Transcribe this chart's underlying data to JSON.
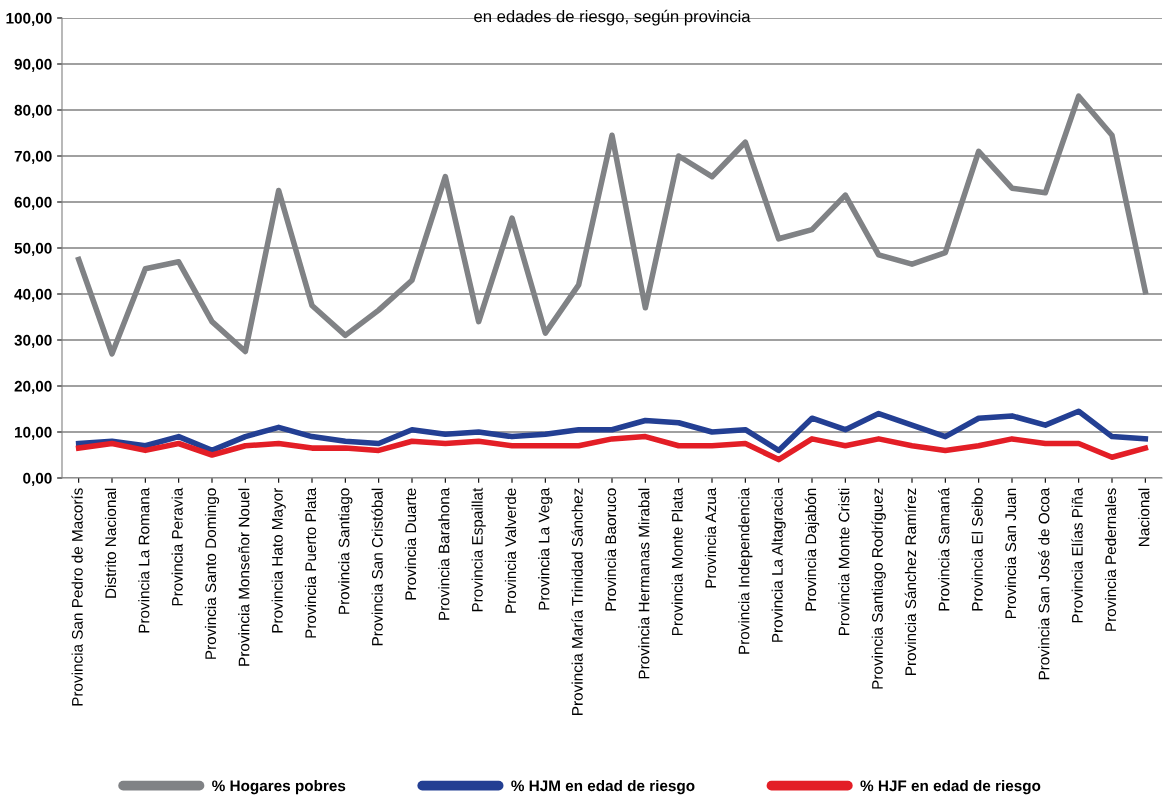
{
  "chart_data": {
    "type": "line",
    "title": "en edades de riesgo, según provincia",
    "categories": [
      "Provincia San Pedro de Macorís",
      "Distrito Nacional",
      "Provincia La Romana",
      "Provincia Peravia",
      "Provincia Santo Domingo",
      "Provincia Monseñor Nouel",
      "Provincia Hato Mayor",
      "Provincia Puerto Plata",
      "Provincia Santiago",
      "Provincia San Cristóbal",
      "Provincia Duarte",
      "Provincia Barahona",
      "Provincia Espaillat",
      "Provincia Valverde",
      "Provincia La Vega",
      "Provincia María Trinidad Sánchez",
      "Provincia Baoruco",
      "Provincia Hermanas Mirabal",
      "Provincia Monte Plata",
      "Provincia Azua",
      "Provincia Independencia",
      "Provincia La Altagracia",
      "Provincia Dajabón",
      "Provincia Monte Cristi",
      "Provincia Santiago Rodríguez",
      "Provincia Sánchez Ramírez",
      "Provincia Samaná",
      "Provincia El Seibo",
      "Provincia San Juan",
      "Provincia San José de Ocoa",
      "Provincia Elías Piña",
      "Provincia Pedernales",
      "Nacional"
    ],
    "series": [
      {
        "name": "% Hogares pobres",
        "color": "#808285",
        "values": [
          47.5,
          27,
          45.5,
          47,
          34,
          27.5,
          62.5,
          37.5,
          31,
          36.5,
          43,
          65.5,
          34,
          56.5,
          31.5,
          42,
          74.5,
          37,
          70,
          65.5,
          73,
          52,
          54,
          61.5,
          48.5,
          46.5,
          49,
          71,
          63,
          62,
          83,
          74.5,
          40.5
        ]
      },
      {
        "name": "% HJM en edad de riesgo",
        "color": "#233f93",
        "values": [
          7.5,
          8,
          7,
          9,
          6,
          9,
          11,
          9,
          8,
          7.5,
          10.5,
          9.5,
          10,
          9,
          9.5,
          10.5,
          10.5,
          12.5,
          12,
          10,
          10.5,
          6,
          13,
          10.5,
          14,
          11.5,
          9,
          13,
          13.5,
          11.5,
          14.5,
          9,
          8.5
        ]
      },
      {
        "name": "% HJF en edad de riesgo",
        "color": "#e31e26",
        "values": [
          6.5,
          7.5,
          6,
          7.5,
          5,
          7,
          7.5,
          6.5,
          6.5,
          6,
          8,
          7.5,
          8,
          7,
          7,
          7,
          8.5,
          9,
          7,
          7,
          7.5,
          4,
          8.5,
          7,
          8.5,
          7,
          6,
          7,
          8.5,
          7.5,
          7.5,
          4.5,
          6.5
        ]
      }
    ],
    "ylim": [
      0,
      100
    ],
    "yticks": [
      {
        "value": 0,
        "label": "0,00"
      },
      {
        "value": 10,
        "label": "10,00"
      },
      {
        "value": 20,
        "label": "20,00"
      },
      {
        "value": 30,
        "label": "30,00"
      },
      {
        "value": 40,
        "label": "40,00"
      },
      {
        "value": 50,
        "label": "50,00"
      },
      {
        "value": 60,
        "label": "60,00"
      },
      {
        "value": 70,
        "label": "70,00"
      },
      {
        "value": 80,
        "label": "80,00"
      },
      {
        "value": 90,
        "label": "90,00"
      },
      {
        "value": 100,
        "label": "100,00"
      }
    ],
    "grid": "y",
    "legend": "bottom",
    "marker": "none",
    "line_style": "solid"
  }
}
